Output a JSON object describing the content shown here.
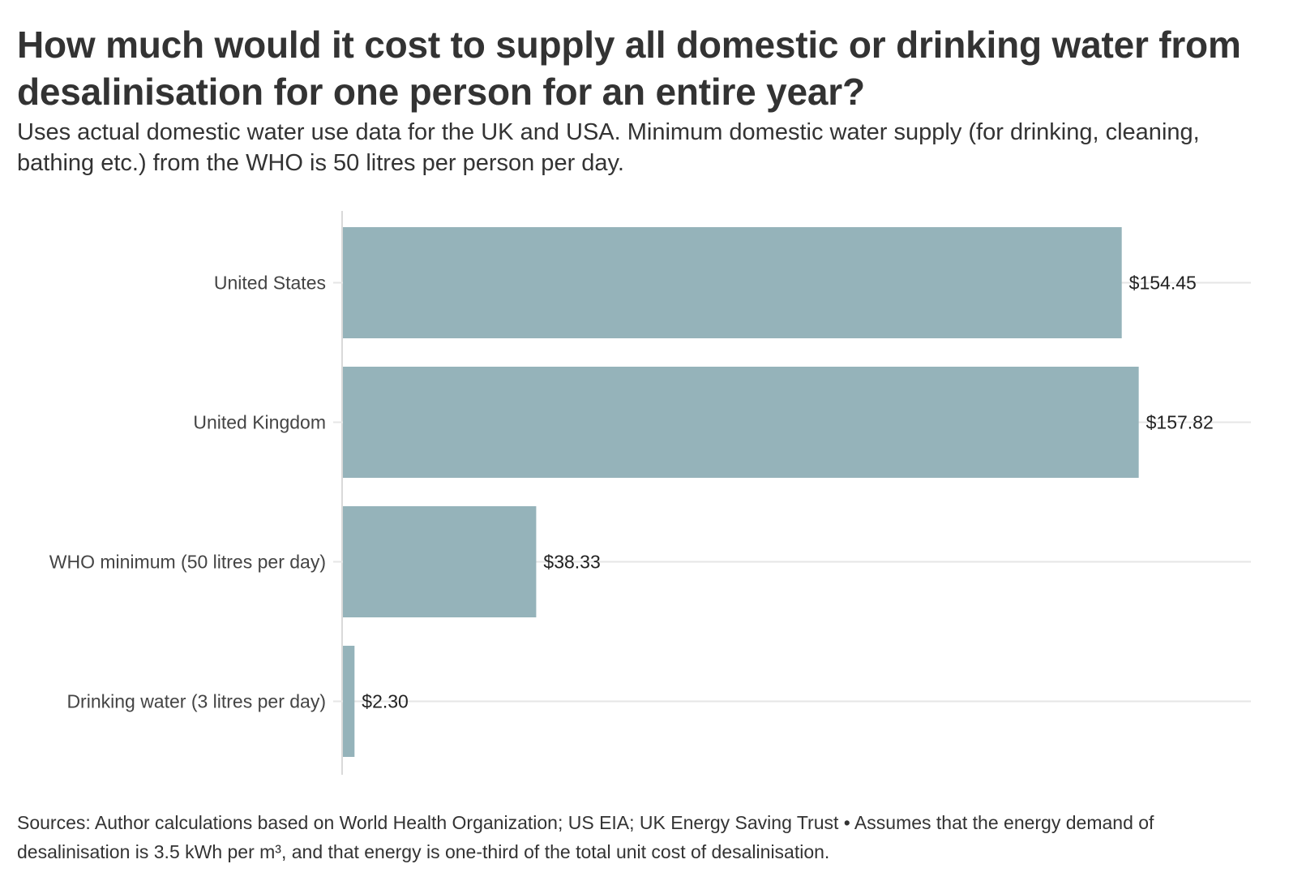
{
  "title": "How much would it cost to supply all domestic or drinking water from desalinisation for one person for an entire year?",
  "subtitle": "Uses actual domestic water use data for the UK and USA. Minimum domestic water supply (for drinking, cleaning, bathing etc.) from the WHO is 50 litres per person per day.",
  "footer": "Sources: Author calculations based on World Health Organization; US EIA; UK Energy Saving Trust • Assumes that the energy demand of desalinisation is 3.5 kWh per m³, and that energy is one-third of the total unit cost of desalinisation.",
  "colors": {
    "bar": "#95b3ba",
    "gridline": "#e6e6e6",
    "axis": "#d9d9d9"
  },
  "chart_data": {
    "type": "bar",
    "orientation": "horizontal",
    "title": "How much would it cost to supply all domestic or drinking water from desalinisation for one person for an entire year?",
    "xlabel": "",
    "ylabel": "",
    "xlim": [
      0,
      180
    ],
    "grid": true,
    "categories": [
      "United States",
      "United Kingdom",
      "WHO minimum (50 litres per day)",
      "Drinking water (3 litres per day)"
    ],
    "values": [
      154.45,
      157.82,
      38.33,
      2.3
    ],
    "value_labels": [
      "$154.45",
      "$157.82",
      "$38.33",
      "$2.30"
    ]
  }
}
